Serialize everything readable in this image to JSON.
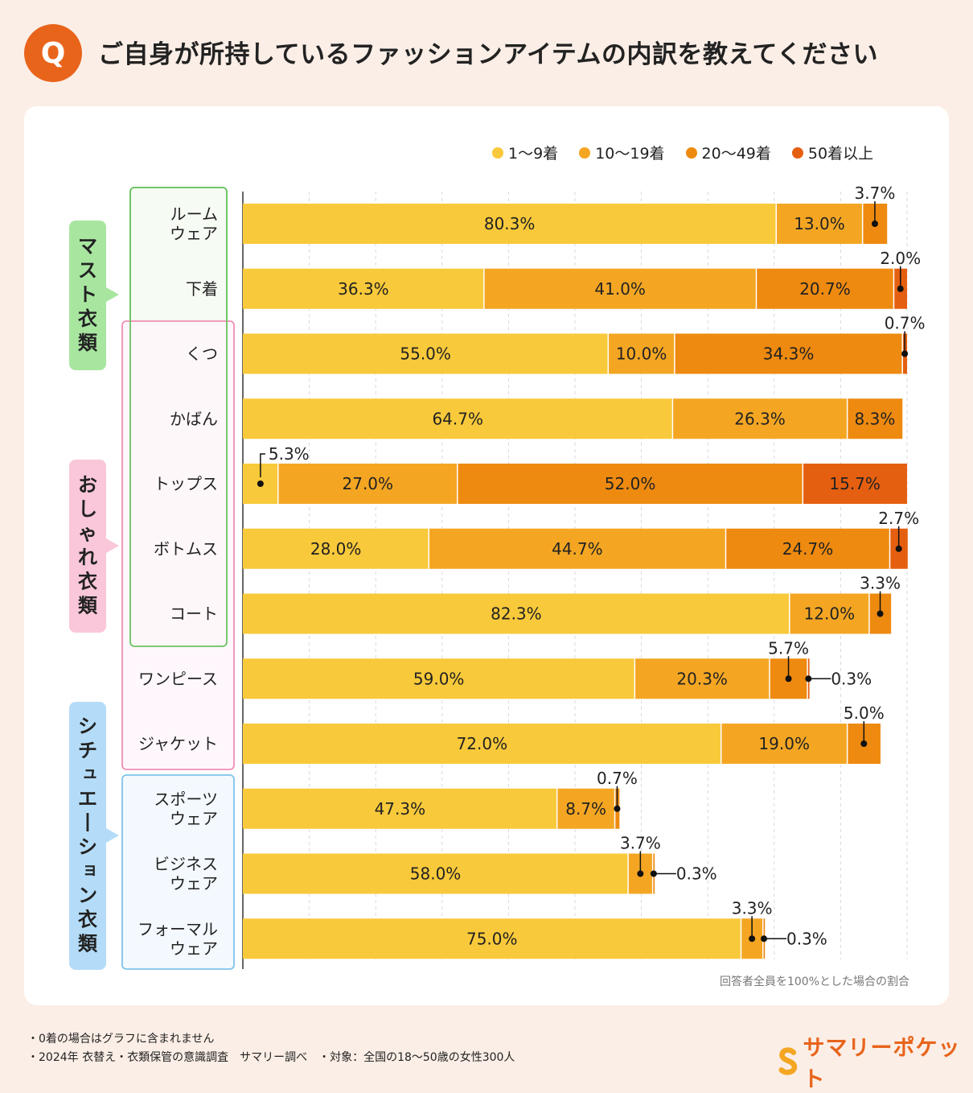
{
  "header": {
    "badge": "Q",
    "title": "ご自身が所持しているファッションアイテムの内訳を教えてください"
  },
  "colors": {
    "c1": "#f8c93a",
    "c2": "#f4a623",
    "c3": "#ee8a10",
    "c4": "#e55f10",
    "page_bg": "#fbeee6",
    "accent": "#e8641b",
    "green": "#6cc463",
    "green_bg": "#a8e6a0",
    "pink": "#ef8fb4",
    "pink_bg": "#f9c7d9",
    "blue": "#7fc3ea",
    "blue_bg": "#b4dcf8"
  },
  "legend": [
    "1〜9着",
    "10〜19着",
    "20〜49着",
    "50着以上"
  ],
  "groups": [
    {
      "label": "マスト衣類",
      "color": "green"
    },
    {
      "label": "おしゃれ衣類",
      "color": "pink"
    },
    {
      "label": "シチュエーション衣類",
      "color": "blue"
    }
  ],
  "chart_data": {
    "type": "bar",
    "orientation": "horizontal",
    "stacked": true,
    "unit": "%",
    "xlim": [
      0,
      100
    ],
    "categories": [
      "ルーム\nウェア",
      "下着",
      "くつ",
      "かばん",
      "トップス",
      "ボトムス",
      "コート",
      "ワンピース",
      "ジャケット",
      "スポーツ\nウェア",
      "ビジネス\nウェア",
      "フォーマル\nウェア"
    ],
    "series": [
      {
        "name": "1〜9着",
        "values": [
          80.3,
          36.3,
          55.0,
          64.7,
          5.3,
          28.0,
          82.3,
          59.0,
          72.0,
          47.3,
          58.0,
          75.0
        ]
      },
      {
        "name": "10〜19着",
        "values": [
          13.0,
          41.0,
          10.0,
          26.3,
          27.0,
          44.7,
          12.0,
          20.3,
          19.0,
          8.7,
          3.7,
          3.3
        ]
      },
      {
        "name": "20〜49着",
        "values": [
          3.7,
          20.7,
          34.3,
          8.3,
          52.0,
          24.7,
          3.3,
          5.7,
          5.0,
          0.7,
          0.3,
          0.3
        ]
      },
      {
        "name": "50着以上",
        "values": [
          0,
          2.0,
          0.7,
          0,
          15.7,
          2.7,
          0,
          0.3,
          0,
          0,
          0,
          0
        ]
      }
    ],
    "labels": [
      [
        "80.3%",
        "13.0%",
        "3.7%",
        ""
      ],
      [
        "36.3%",
        "41.0%",
        "20.7%",
        "2.0%"
      ],
      [
        "55.0%",
        "10.0%",
        "34.3%",
        "0.7%"
      ],
      [
        "64.7%",
        "26.3%",
        "8.3%",
        ""
      ],
      [
        "5.3%",
        "27.0%",
        "52.0%",
        "15.7%"
      ],
      [
        "28.0%",
        "44.7%",
        "24.7%",
        "2.7%"
      ],
      [
        "82.3%",
        "12.0%",
        "3.3%",
        ""
      ],
      [
        "59.0%",
        "20.3%",
        "5.7%",
        "0.3%"
      ],
      [
        "72.0%",
        "19.0%",
        "5.0%",
        ""
      ],
      [
        "47.3%",
        "8.7%",
        "0.7%",
        ""
      ],
      [
        "58.0%",
        "3.7%",
        "0.3%",
        ""
      ],
      [
        "75.0%",
        "3.3%",
        "0.3%",
        ""
      ]
    ],
    "note": "回答者全員を100%とした場合の割合"
  },
  "footer": {
    "note1": "・0着の場合はグラフに含まれません",
    "note2": "・2024年 衣替え・衣類保管の意識調査　サマリー調べ　・対象：全国の18〜50歳の女性300人",
    "logo": "サマリーポケット"
  }
}
